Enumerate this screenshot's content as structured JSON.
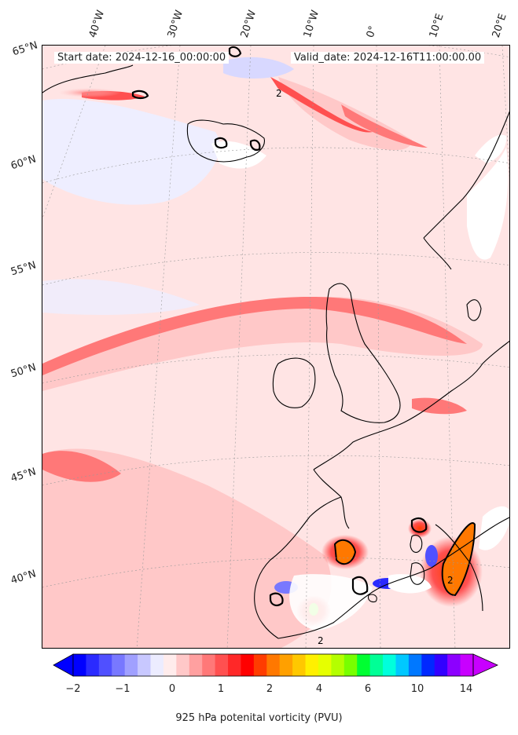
{
  "header": {
    "start": "Start date: 2024-12-16_00:00:00",
    "valid": "Valid_date: 2024-12-16T11:00:00.00"
  },
  "lon_labels": [
    "40°W",
    "30°W",
    "20°W",
    "10°W",
    "0°",
    "10°E",
    "20°E"
  ],
  "lat_labels": [
    "65°N",
    "60°N",
    "55°N",
    "50°N",
    "45°N",
    "40°N"
  ],
  "colorbar": {
    "ticks": [
      "−2",
      "−1",
      "0",
      "1",
      "2",
      "4",
      "6",
      "10",
      "14"
    ],
    "label": "925 hPa potenital vorticity (PVU)",
    "colors": [
      "#0000ff",
      "#2a2aff",
      "#5050ff",
      "#7878ff",
      "#a0a0ff",
      "#c8c8ff",
      "#ececff",
      "#ffecec",
      "#ffc8c8",
      "#ffa0a0",
      "#ff7878",
      "#ff5050",
      "#ff2828",
      "#ff0000",
      "#ff3c00",
      "#ff7800",
      "#ffa000",
      "#ffc800",
      "#fff000",
      "#e6ff00",
      "#b4ff00",
      "#78ff00",
      "#00ff32",
      "#00ff96",
      "#00ffdc",
      "#00c8ff",
      "#0078ff",
      "#0028ff",
      "#3200ff",
      "#8c00ff",
      "#c800ff"
    ]
  },
  "contour_label": "2"
}
